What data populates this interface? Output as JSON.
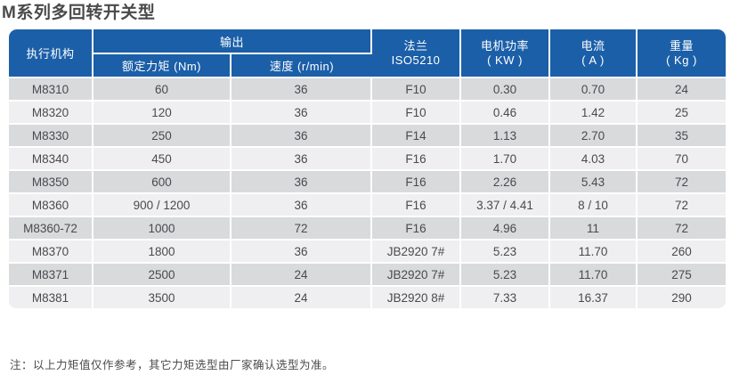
{
  "page": {
    "title": "M系列多回转开关型",
    "note": "注：以上力矩值仅作参考，其它力矩选型由厂家确认选型为准。"
  },
  "colors": {
    "header_blue": "#1b5fa8",
    "row_stripe_dark": "#d9dadc",
    "row_stripe_light": "#efeff1",
    "cell_border_white": "#ffffff",
    "text_dark": "#4a4a4e"
  },
  "table": {
    "headers": {
      "actuator": "执行机构",
      "output_group": "输出",
      "rated_torque": "额定力矩 (Nm)",
      "speed": "速度 (r/min)",
      "flange_line1": "法兰",
      "flange_line2": "ISO5210",
      "motor_power_line1": "电机功率",
      "motor_power_line2": "( KW )",
      "current_line1": "电流",
      "current_line2": "( A )",
      "weight_line1": "重量",
      "weight_line2": "( Kg )"
    },
    "column_keys": [
      "actuator",
      "rated-torque",
      "speed",
      "flange",
      "motor-power",
      "current",
      "weight"
    ],
    "rows": [
      [
        "M8310",
        "60",
        "36",
        "F10",
        "0.30",
        "0.70",
        "24"
      ],
      [
        "M8320",
        "120",
        "36",
        "F10",
        "0.46",
        "1.42",
        "25"
      ],
      [
        "M8330",
        "250",
        "36",
        "F14",
        "1.13",
        "2.70",
        "35"
      ],
      [
        "M8340",
        "450",
        "36",
        "F16",
        "1.70",
        "4.03",
        "70"
      ],
      [
        "M8350",
        "600",
        "36",
        "F16",
        "2.26",
        "5.43",
        "72"
      ],
      [
        "M8360",
        "900 / 1200",
        "36",
        "F16",
        "3.37 / 4.41",
        "8 / 10",
        "72"
      ],
      [
        "M8360-72",
        "1000",
        "72",
        "F16",
        "4.96",
        "11",
        "72"
      ],
      [
        "M8370",
        "1800",
        "36",
        "JB2920 7#",
        "5.23",
        "11.70",
        "260"
      ],
      [
        "M8371",
        "2500",
        "24",
        "JB2920 7#",
        "5.23",
        "11.70",
        "275"
      ],
      [
        "M8381",
        "3500",
        "24",
        "JB2920 8#",
        "7.33",
        "16.37",
        "290"
      ]
    ]
  }
}
